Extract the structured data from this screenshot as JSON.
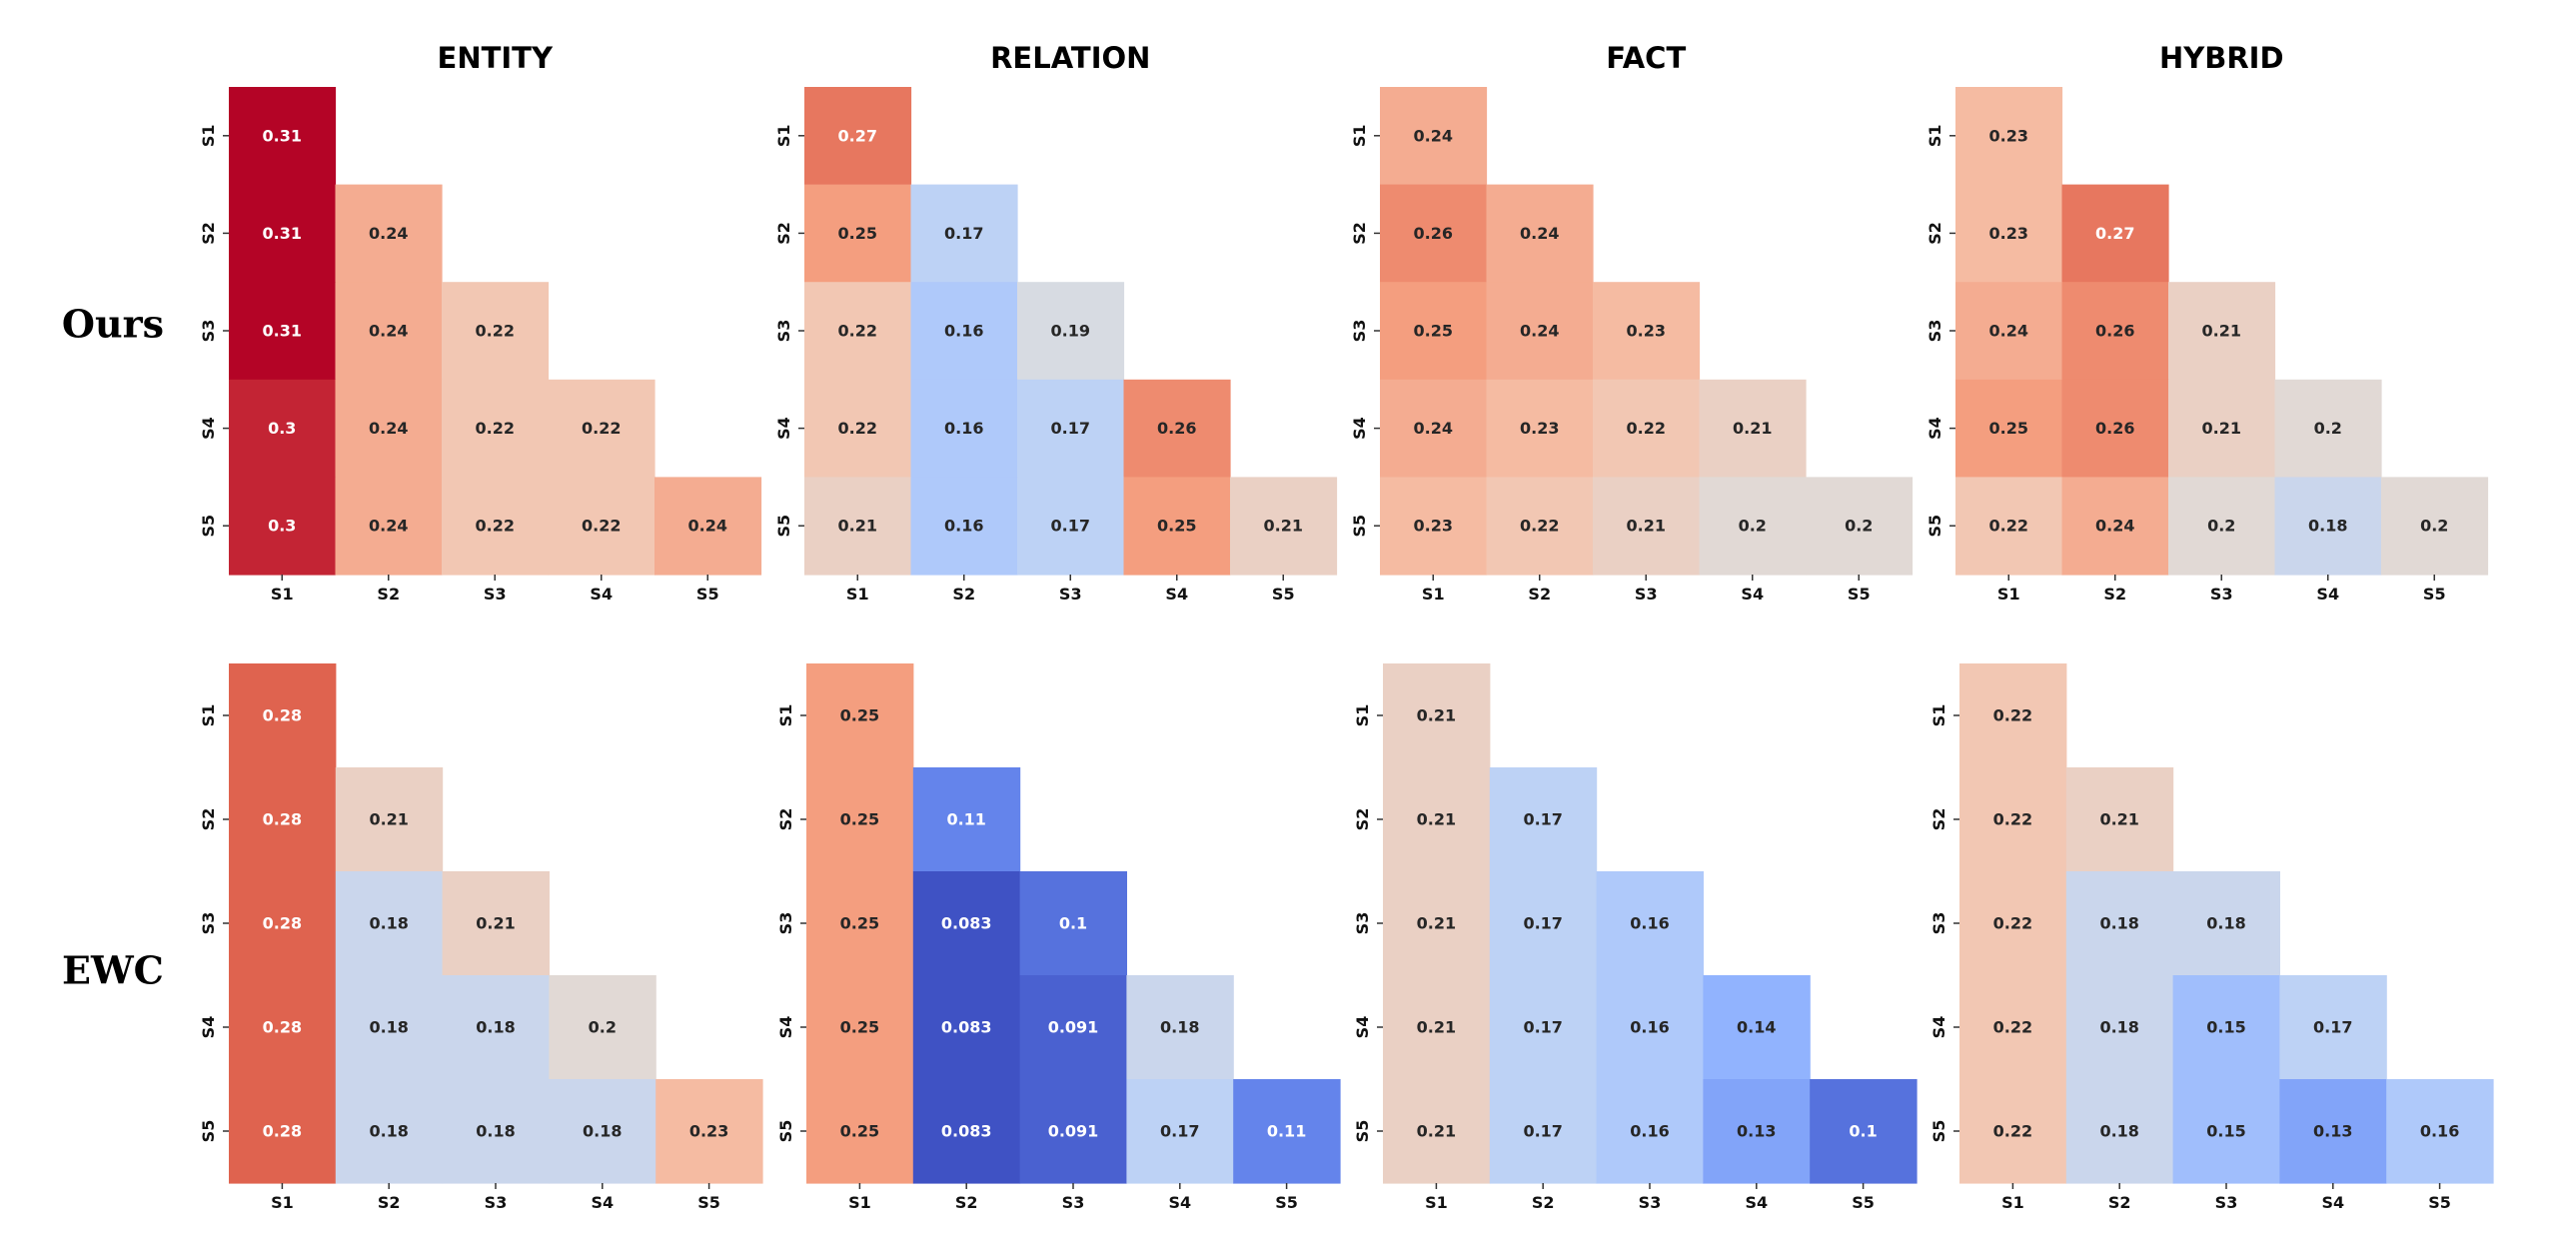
{
  "chart_data": {
    "type": "heatmap",
    "colormap": "coolwarm",
    "color_range": [
      0.08,
      0.31
    ],
    "shape": "lower-triangular",
    "row_labels": [
      "Ours",
      "EWC"
    ],
    "column_titles": [
      "ENTITY",
      "RELATION",
      "FACT",
      "HYBRID"
    ],
    "x_tick_labels": [
      "S1",
      "S2",
      "S3",
      "S4",
      "S5"
    ],
    "y_tick_labels": [
      "S1",
      "S2",
      "S3",
      "S4",
      "S5"
    ],
    "panels": [
      {
        "row": "Ours",
        "title": "ENTITY",
        "values": [
          [
            "0.31"
          ],
          [
            "0.31",
            "0.24"
          ],
          [
            "0.31",
            "0.24",
            "0.22"
          ],
          [
            "0.3",
            "0.24",
            "0.22",
            "0.22"
          ],
          [
            "0.3",
            "0.24",
            "0.22",
            "0.22",
            "0.24"
          ]
        ]
      },
      {
        "row": "Ours",
        "title": "RELATION",
        "values": [
          [
            "0.27"
          ],
          [
            "0.25",
            "0.17"
          ],
          [
            "0.22",
            "0.16",
            "0.19"
          ],
          [
            "0.22",
            "0.16",
            "0.17",
            "0.26"
          ],
          [
            "0.21",
            "0.16",
            "0.17",
            "0.25",
            "0.21"
          ]
        ]
      },
      {
        "row": "Ours",
        "title": "FACT",
        "values": [
          [
            "0.24"
          ],
          [
            "0.26",
            "0.24"
          ],
          [
            "0.25",
            "0.24",
            "0.23"
          ],
          [
            "0.24",
            "0.23",
            "0.22",
            "0.21"
          ],
          [
            "0.23",
            "0.22",
            "0.21",
            "0.2",
            "0.2"
          ]
        ]
      },
      {
        "row": "Ours",
        "title": "HYBRID",
        "values": [
          [
            "0.23"
          ],
          [
            "0.23",
            "0.27"
          ],
          [
            "0.24",
            "0.26",
            "0.21"
          ],
          [
            "0.25",
            "0.26",
            "0.21",
            "0.2"
          ],
          [
            "0.22",
            "0.24",
            "0.2",
            "0.18",
            "0.2"
          ]
        ]
      },
      {
        "row": "EWC",
        "title": "",
        "values": [
          [
            "0.28"
          ],
          [
            "0.28",
            "0.21"
          ],
          [
            "0.28",
            "0.18",
            "0.21"
          ],
          [
            "0.28",
            "0.18",
            "0.18",
            "0.2"
          ],
          [
            "0.28",
            "0.18",
            "0.18",
            "0.18",
            "0.23"
          ]
        ]
      },
      {
        "row": "EWC",
        "title": "",
        "values": [
          [
            "0.25"
          ],
          [
            "0.25",
            "0.11"
          ],
          [
            "0.25",
            "0.083",
            "0.1"
          ],
          [
            "0.25",
            "0.083",
            "0.091",
            "0.18"
          ],
          [
            "0.25",
            "0.083",
            "0.091",
            "0.17",
            "0.11"
          ]
        ]
      },
      {
        "row": "EWC",
        "title": "",
        "values": [
          [
            "0.21"
          ],
          [
            "0.21",
            "0.17"
          ],
          [
            "0.21",
            "0.17",
            "0.16"
          ],
          [
            "0.21",
            "0.17",
            "0.16",
            "0.14"
          ],
          [
            "0.21",
            "0.17",
            "0.16",
            "0.13",
            "0.1"
          ]
        ]
      },
      {
        "row": "EWC",
        "title": "",
        "values": [
          [
            "0.22"
          ],
          [
            "0.22",
            "0.21"
          ],
          [
            "0.22",
            "0.18",
            "0.18"
          ],
          [
            "0.22",
            "0.18",
            "0.15",
            "0.17"
          ],
          [
            "0.22",
            "0.18",
            "0.15",
            "0.13",
            "0.16"
          ]
        ]
      }
    ]
  }
}
